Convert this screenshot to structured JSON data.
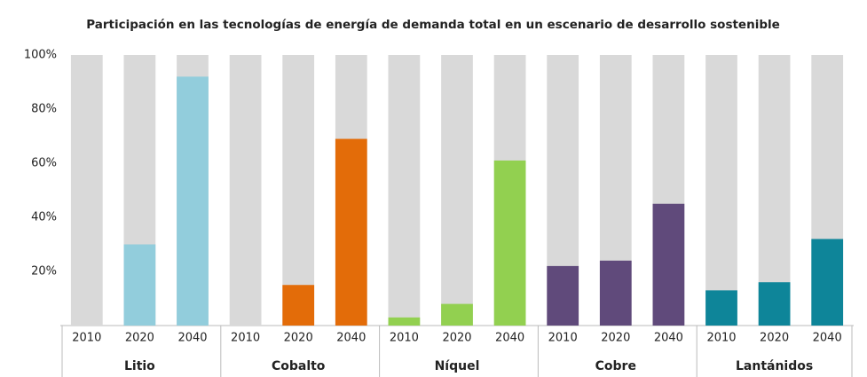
{
  "chart_data": {
    "type": "bar",
    "title": "Participación en las tecnologías de energía de demanda total en un escenario de desarrollo sostenible",
    "groups": [
      {
        "name": "Litio",
        "color": "#92cddc",
        "categories": [
          "2010",
          "2020",
          "2040"
        ],
        "values": [
          0,
          30,
          92
        ]
      },
      {
        "name": "Cobalto",
        "color": "#e36c09",
        "categories": [
          "2010",
          "2020",
          "2040"
        ],
        "values": [
          0,
          15,
          69
        ]
      },
      {
        "name": "Níquel",
        "color": "#92d050",
        "categories": [
          "2010",
          "2020",
          "2040"
        ],
        "values": [
          3,
          8,
          61
        ]
      },
      {
        "name": "Cobre",
        "color": "#604a7b",
        "categories": [
          "2010",
          "2020",
          "2040"
        ],
        "values": [
          22,
          24,
          45
        ]
      },
      {
        "name": "Lantánidos",
        "color": "#0e8599",
        "categories": [
          "2010",
          "2020",
          "2040"
        ],
        "values": [
          13,
          16,
          32
        ]
      }
    ],
    "track_color": "#d9d9d9",
    "ylim": [
      0,
      100
    ],
    "yticks": [
      {
        "value": 20,
        "label": "20%"
      },
      {
        "value": 40,
        "label": "40%"
      },
      {
        "value": 60,
        "label": "60%"
      },
      {
        "value": 80,
        "label": "80%"
      },
      {
        "value": 100,
        "label": "100%"
      }
    ],
    "grid": false
  }
}
